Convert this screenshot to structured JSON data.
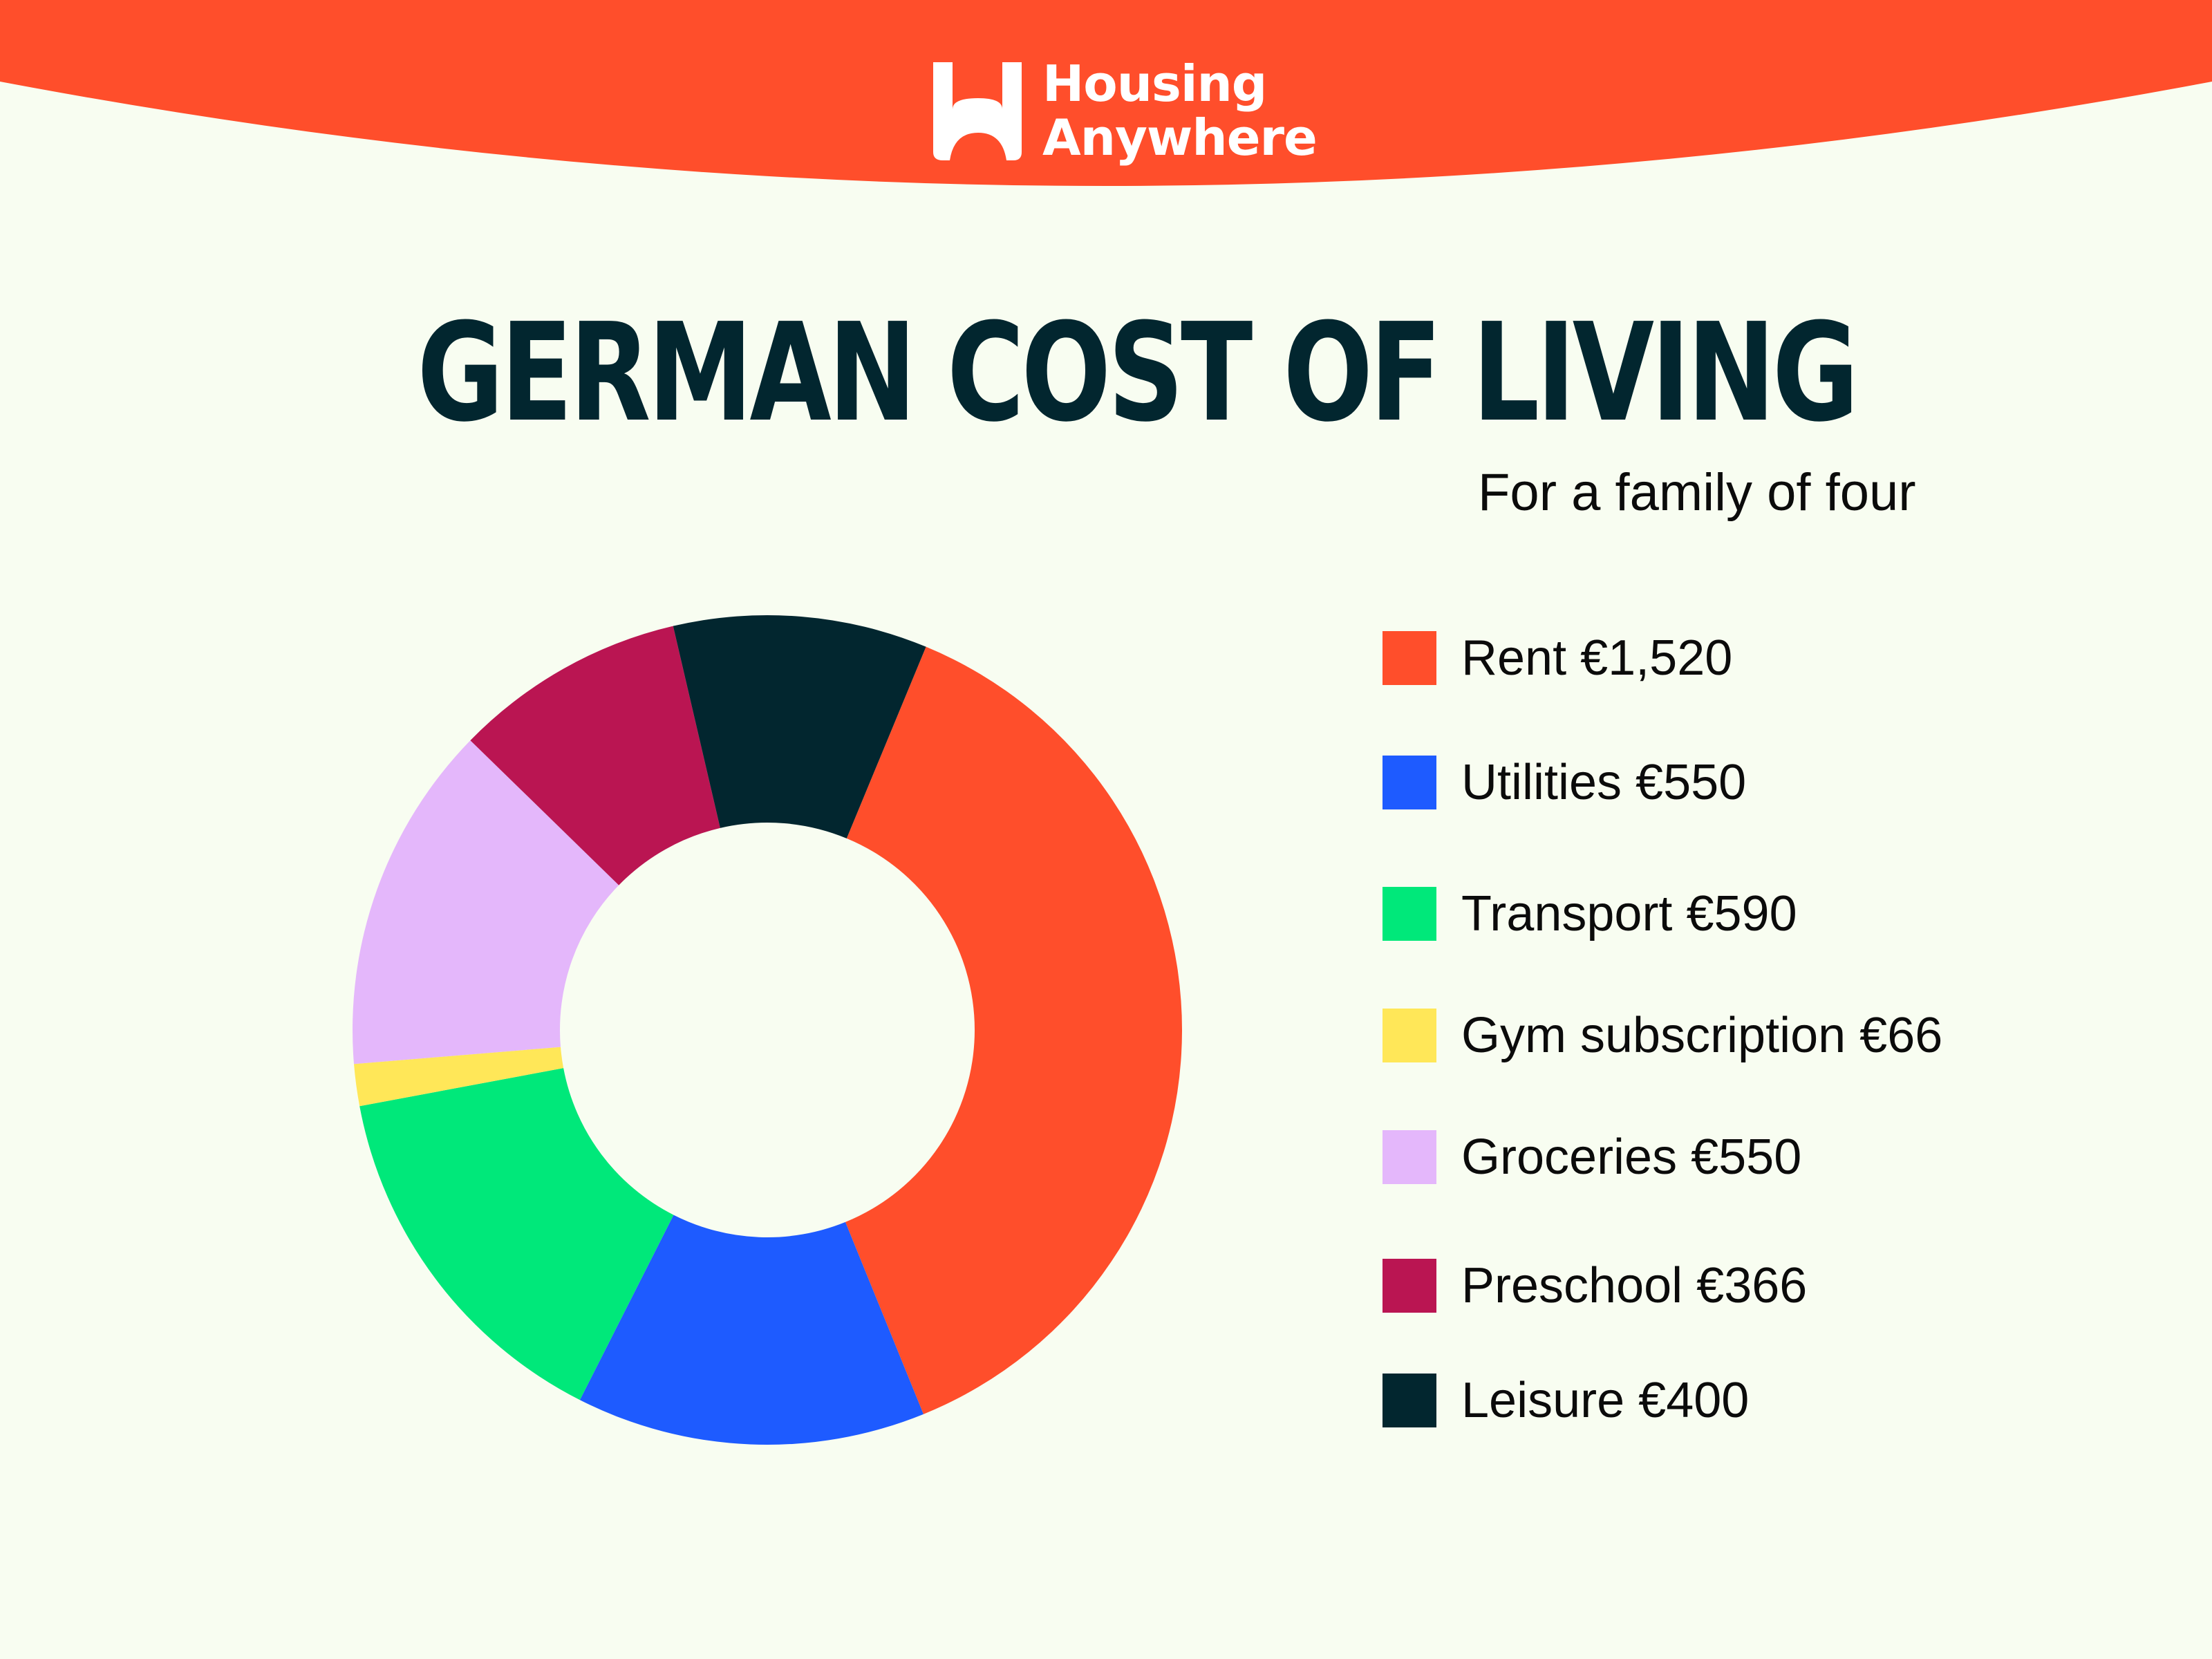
{
  "brand": {
    "name_line1": "Housing",
    "name_line2": "Anywhere",
    "color": "#ff4e2b"
  },
  "chart_data": {
    "type": "pie",
    "title": "GERMAN COST OF LIVING",
    "subtitle": "For a family of four",
    "legend_position": "right",
    "slices": [
      {
        "label": "Rent €1,520",
        "value": 1520,
        "color": "#ff4e2b"
      },
      {
        "label": "Utilities €550",
        "value": 550,
        "color": "#1e5bff"
      },
      {
        "label": "Transport €590",
        "value": 590,
        "color": "#00e87a"
      },
      {
        "label": "Gym subscription €66",
        "value": 66,
        "color": "#ffe758"
      },
      {
        "label": "Groceries €550",
        "value": 550,
        "color": "#e4b7fb"
      },
      {
        "label": "Preschool €366",
        "value": 366,
        "color": "#ba1552"
      },
      {
        "label": "Leisure €400",
        "value": 400,
        "color": "#02262f"
      }
    ]
  }
}
